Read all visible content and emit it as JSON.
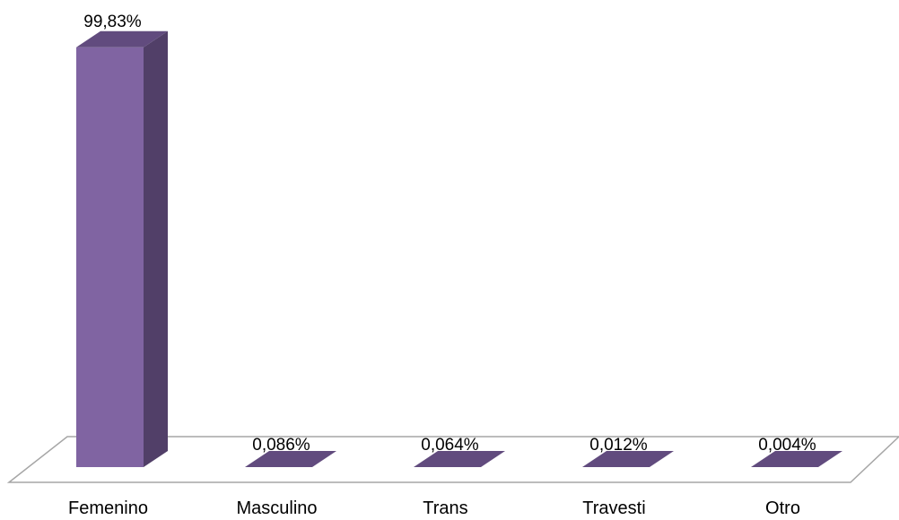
{
  "chart_data": {
    "type": "bar",
    "style": "3d-column",
    "categories": [
      "Femenino",
      "Masculino",
      "Trans",
      "Travesti",
      "Otro"
    ],
    "values": [
      99.83,
      0.086,
      0.064,
      0.012,
      0.004
    ],
    "data_labels": [
      "99,83%",
      "0,086%",
      "0,064%",
      "0,012%",
      "0,004%"
    ],
    "unit": "%",
    "ylim": [
      0,
      100
    ],
    "grid": false,
    "legend": "none",
    "colors": {
      "bar_front": "#8064A2",
      "bar_side": "#513F68",
      "bar_top": "#614B7E",
      "floor_stroke": "#A6A6A6"
    }
  }
}
